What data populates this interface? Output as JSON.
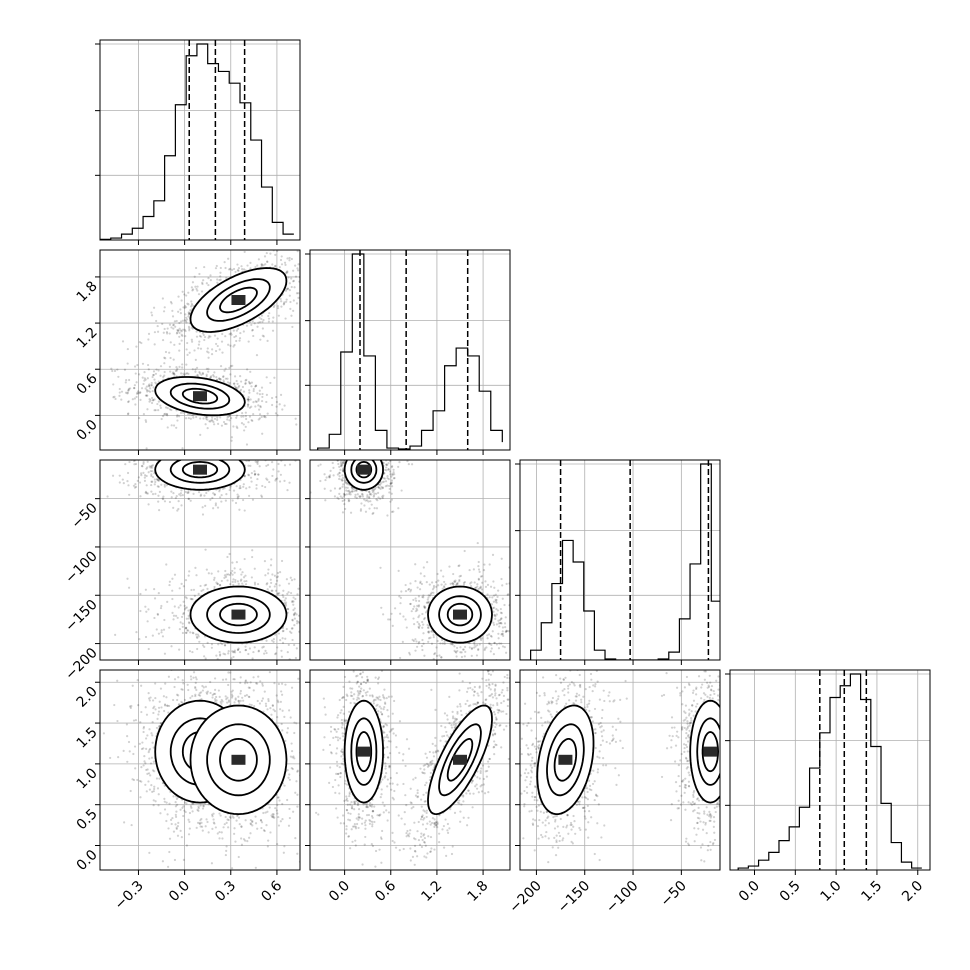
{
  "chart_data": {
    "type": "corner",
    "parameters": [
      {
        "range": [
          -0.55,
          0.75
        ],
        "ticks": [
          -0.3,
          0.0,
          0.3,
          0.6
        ],
        "tick_labels": [
          "−0.3",
          "0.0",
          "0.3",
          "0.6"
        ],
        "quantiles": [
          0.03,
          0.2,
          0.39
        ],
        "histogram": {
          "bin_edges": [
            -0.55,
            -0.48,
            -0.41,
            -0.34,
            -0.27,
            -0.2,
            -0.13,
            -0.06,
            0.01,
            0.08,
            0.15,
            0.22,
            0.29,
            0.36,
            0.43,
            0.5,
            0.57,
            0.64,
            0.71
          ],
          "counts": [
            0.003,
            0.01,
            0.03,
            0.06,
            0.12,
            0.2,
            0.43,
            0.69,
            0.94,
            1.0,
            0.9,
            0.86,
            0.8,
            0.7,
            0.51,
            0.27,
            0.09,
            0.03
          ]
        }
      },
      {
        "range": [
          -0.45,
          2.15
        ],
        "ticks": [
          0.0,
          0.6,
          1.2,
          1.8
        ],
        "tick_labels": [
          "0.0",
          "0.6",
          "1.2",
          "1.8"
        ],
        "quantiles": [
          0.2,
          0.8,
          1.6
        ],
        "histogram": {
          "bin_edges": [
            -0.35,
            -0.2,
            -0.05,
            0.1,
            0.25,
            0.4,
            0.55,
            0.7,
            0.85,
            1.0,
            1.15,
            1.3,
            1.45,
            1.6,
            1.75,
            1.9,
            2.05
          ],
          "counts": [
            0.01,
            0.08,
            0.5,
            1.0,
            0.48,
            0.1,
            0.01,
            0.005,
            0.02,
            0.1,
            0.2,
            0.43,
            0.52,
            0.48,
            0.3,
            0.1,
            0.04
          ]
        }
      },
      {
        "range": [
          -217,
          -10
        ],
        "ticks": [
          -200,
          -150,
          -100,
          -50
        ],
        "tick_labels": [
          "−200",
          "−150",
          "−100",
          "−50"
        ],
        "quantiles": [
          -175,
          -103,
          -22
        ],
        "histogram": {
          "bin_edges": [
            -217,
            -206,
            -195,
            -184,
            -173,
            -162,
            -151,
            -140,
            -129,
            -118,
            -107,
            -96,
            -85,
            -74,
            -63,
            -52,
            -41,
            -30,
            -19,
            -10
          ],
          "counts": [
            0.0,
            0.05,
            0.19,
            0.39,
            0.61,
            0.5,
            0.25,
            0.05,
            0.005,
            0.0,
            0.0,
            0.0,
            0.0,
            0.005,
            0.04,
            0.21,
            0.49,
            1.0,
            0.3
          ]
        }
      },
      {
        "range": [
          -0.3,
          2.15
        ],
        "ticks": [
          0.0,
          0.5,
          1.0,
          1.5,
          2.0
        ],
        "tick_labels": [
          "0.0",
          "0.5",
          "1.0",
          "1.5",
          "2.0"
        ],
        "quantiles": [
          0.8,
          1.1,
          1.37
        ],
        "histogram": {
          "bin_edges": [
            -0.2,
            -0.075,
            0.05,
            0.175,
            0.3,
            0.425,
            0.55,
            0.675,
            0.8,
            0.925,
            1.05,
            1.175,
            1.3,
            1.425,
            1.55,
            1.675,
            1.8,
            1.925,
            2.05
          ],
          "counts": [
            0.01,
            0.02,
            0.05,
            0.09,
            0.15,
            0.22,
            0.32,
            0.52,
            0.7,
            0.88,
            0.94,
            1.0,
            0.87,
            0.63,
            0.34,
            0.14,
            0.04,
            0.01
          ]
        }
      }
    ],
    "joint_modes": [
      {
        "center": [
          0.1,
          0.25,
          -20,
          1.15
        ],
        "sd": [
          0.14,
          0.12,
          10,
          0.3
        ],
        "corr": [
          [
            1,
            -0.3,
            0,
            0
          ],
          [
            -0.3,
            1,
            0,
            0
          ],
          [
            0,
            0,
            1,
            0
          ],
          [
            0,
            0,
            0,
            1
          ]
        ],
        "weight": 1.0
      },
      {
        "center": [
          0.35,
          1.5,
          -170,
          1.05
        ],
        "sd": [
          0.15,
          0.2,
          14,
          0.32
        ],
        "corr": [
          [
            1,
            0.6,
            0,
            0
          ],
          [
            0.6,
            1,
            0,
            0.75
          ],
          [
            0,
            0,
            1,
            0.3
          ],
          [
            0,
            0.75,
            0.3,
            1
          ]
        ],
        "weight": 0.95
      }
    ],
    "contour_levels": [
      0.2,
      0.5,
      0.85,
      1.3
    ],
    "grid": true,
    "legend": null,
    "title": "",
    "xlabels": [
      "",
      "",
      "",
      ""
    ],
    "ylabels": [
      "",
      "",
      "",
      ""
    ]
  }
}
